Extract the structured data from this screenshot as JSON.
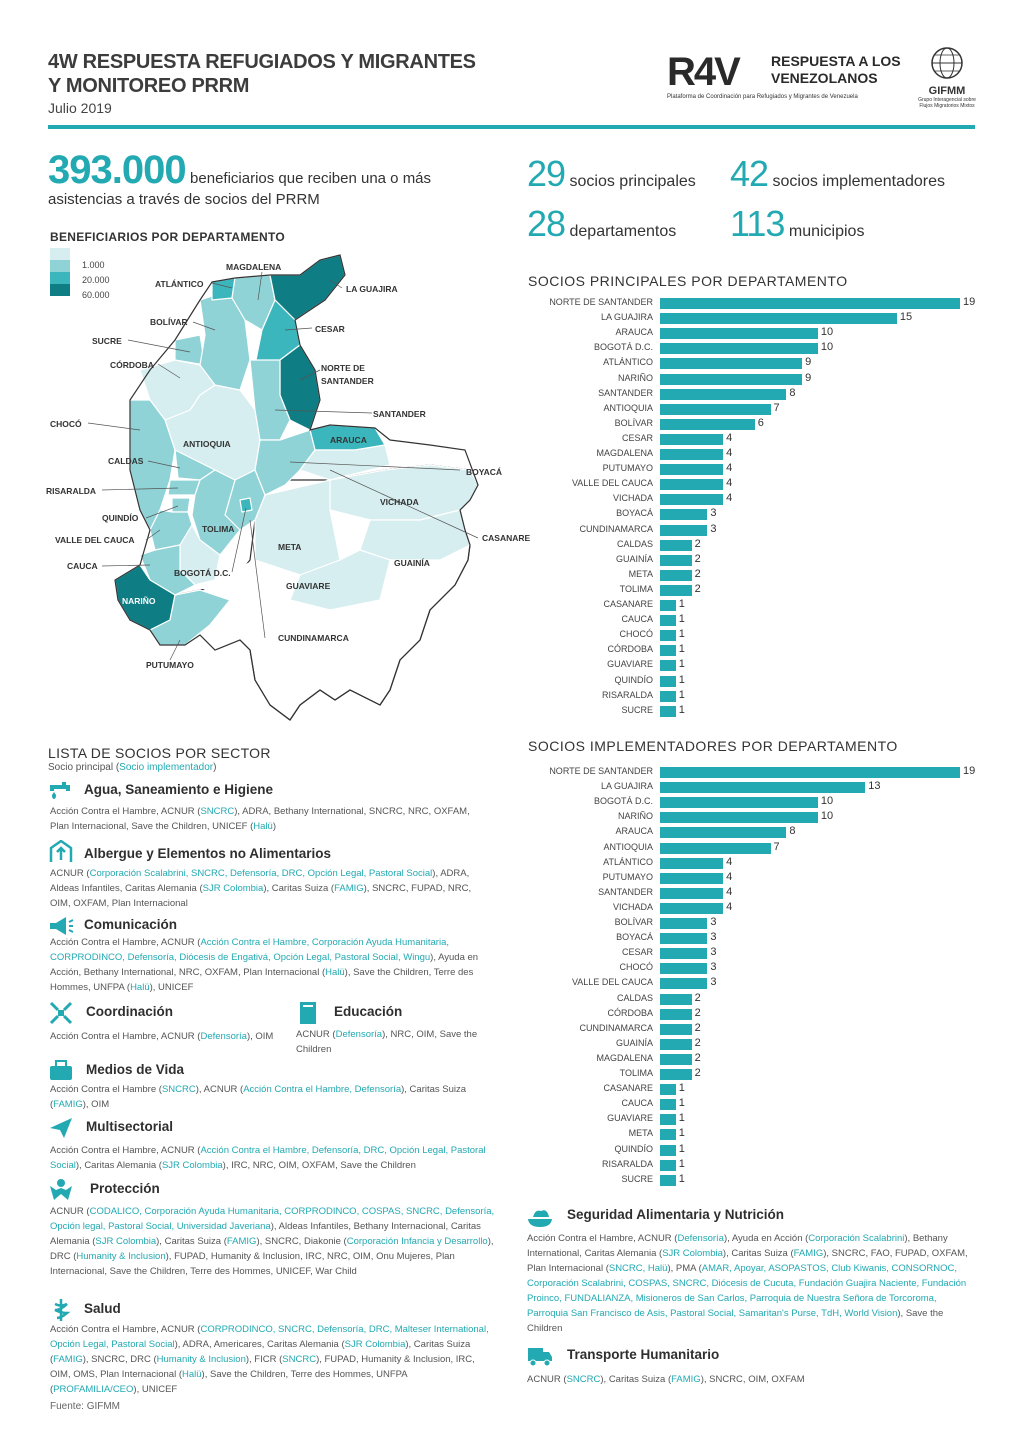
{
  "header": {
    "title_line1": "4W RESPUESTA REFUGIADOS Y MIGRANTES",
    "title_line2": "Y MONITOREO PRRM",
    "date": "Julio 2019",
    "logo_r4v": "R4V",
    "logo_r4v_text1": "RESPUESTA A LOS",
    "logo_r4v_text2": "VENEZOLANOS",
    "logo_r4v_sub": "Plataforma de Coordinación para Refugiados y Migrantes de Venezuela",
    "logo_gifmm": "GIFMM",
    "logo_gifmm_sub": "Grupo Interagencial sobre Flujos Migratorios Mixtos"
  },
  "summary": {
    "beneficiaries_value": "393.000",
    "beneficiaries_text1": "beneficiarios que reciben una o más",
    "beneficiaries_text2": "asistencias a través de socios del PRRM",
    "kpis": [
      {
        "value": "29",
        "label": "socios principales"
      },
      {
        "value": "42",
        "label": "socios implementadores"
      },
      {
        "value": "28",
        "label": "departamentos"
      },
      {
        "value": "113",
        "label": "municipios"
      }
    ]
  },
  "map": {
    "title": "BENEFICIARIOS POR DEPARTAMENTO",
    "legend": [
      "1.000",
      "20.000",
      "60.000"
    ],
    "legend_colors": [
      "#d6eef0",
      "#8fd3d7",
      "#3cb6bd",
      "#0e7d84"
    ],
    "labels": [
      "MAGDALENA",
      "ATLÁNTICO",
      "LA GUAJIRA",
      "BOLÍVAR",
      "CESAR",
      "SUCRE",
      "CÓRDOBA",
      "NORTE DE",
      "SANTANDER",
      "SANTANDER",
      "CHOCÓ",
      "ARAUCA",
      "ANTIOQUIA",
      "CALDAS",
      "BOYACÁ",
      "RISARALDA",
      "VICHADA",
      "QUINDÍO",
      "TOLIMA",
      "VALLE DEL CAUCA",
      "CASANARE",
      "META",
      "GUAINÍA",
      "CAUCA",
      "BOGOTÁ D.C.",
      "GUAVIARE",
      "NARIÑO",
      "CUNDINAMARCA",
      "PUTUMAYO"
    ]
  },
  "chart_data": [
    {
      "type": "bar",
      "title": "SOCIOS PRINCIPALES POR DEPARTAMENTO",
      "orientation": "horizontal",
      "categories": [
        "NORTE DE SANTANDER",
        "LA GUAJIRA",
        "ARAUCA",
        "BOGOTÁ D.C.",
        "ATLÁNTICO",
        "NARIÑO",
        "SANTANDER",
        "ANTIOQUIA",
        "BOLÍVAR",
        "CESAR",
        "MAGDALENA",
        "PUTUMAYO",
        "VALLE DEL CAUCA",
        "VICHADA",
        "BOYACÁ",
        "CUNDINAMARCA",
        "CALDAS",
        "GUAINÍA",
        "META",
        "TOLIMA",
        "CASANARE",
        "CAUCA",
        "CHOCÓ",
        "CÓRDOBA",
        "GUAVIARE",
        "QUINDÍO",
        "RISARALDA",
        "SUCRE"
      ],
      "values": [
        19,
        15,
        10,
        10,
        9,
        9,
        8,
        7,
        6,
        4,
        4,
        4,
        4,
        4,
        3,
        3,
        2,
        2,
        2,
        2,
        1,
        1,
        1,
        1,
        1,
        1,
        1,
        1
      ],
      "color": "#22a9b2"
    },
    {
      "type": "bar",
      "title": "SOCIOS IMPLEMENTADORES POR DEPARTAMENTO",
      "orientation": "horizontal",
      "categories": [
        "NORTE DE SANTANDER",
        "LA GUAJIRA",
        "BOGOTÁ D.C.",
        "NARIÑO",
        "ARAUCA",
        "ANTIOQUIA",
        "ATLÁNTICO",
        "PUTUMAYO",
        "SANTANDER",
        "VICHADA",
        "BOLÍVAR",
        "BOYACÁ",
        "CESAR",
        "CHOCÓ",
        "VALLE DEL CAUCA",
        "CALDAS",
        "CÓRDOBA",
        "CUNDINAMARCA",
        "GUAINÍA",
        "MAGDALENA",
        "TOLIMA",
        "CASANARE",
        "CAUCA",
        "GUAVIARE",
        "META",
        "QUINDÍO",
        "RISARALDA",
        "SUCRE"
      ],
      "values": [
        19,
        13,
        10,
        10,
        8,
        7,
        4,
        4,
        4,
        4,
        3,
        3,
        3,
        3,
        3,
        2,
        2,
        2,
        2,
        2,
        2,
        1,
        1,
        1,
        1,
        1,
        1,
        1
      ],
      "color": "#22a9b2"
    }
  ],
  "sectors": {
    "title": "LISTA DE SOCIOS POR SECTOR",
    "subtitle_a": "Socio principal (",
    "subtitle_b": "Socio implementador",
    "subtitle_c": ")",
    "items": [
      {
        "name": "Agua, Saneamiento e Higiene",
        "text": "Acción Contra el Hambre, ACNUR (SNCRC), ADRA, Bethany International, SNCRC, NRC, OXFAM, Plan Internacional, Save the Children, UNICEF (Halü)"
      },
      {
        "name": "Albergue y Elementos no Alimentarios",
        "text": "ACNUR (Corporación Scalabrini, SNCRC, Defensoría, DRC, Opción Legal, Pastoral Social), ADRA, Aldeas Infantiles, Caritas Alemania (SJR Colombia), Caritas Suiza (FAMIG), SNCRC, FUPAD, NRC, OIM, OXFAM, Plan Internacional"
      },
      {
        "name": "Comunicación",
        "text": "Acción Contra el Hambre, ACNUR (Acción Contra el Hambre, Corporación Ayuda Humanitaria, CORPRODINCO, Defensoría, Diócesis de Engativá, Opción Legal, Pastoral Social, Wingu), Ayuda en Acción, Bethany International, NRC, OXFAM, Plan Internacional (Halü), Save the Children, Terre des Hommes, UNFPA (Halü), UNICEF"
      },
      {
        "name": "Coordinación",
        "text": "Acción Contra el Hambre, ACNUR (Defensoría), OIM"
      },
      {
        "name": "Educación",
        "text": "ACNUR (Defensoría), NRC, OIM, Save the Children"
      },
      {
        "name": "Medios de Vida",
        "text": "Acción Contra el Hambre (SNCRC), ACNUR (Acción Contra el Hambre, Defensoría), Caritas Suiza (FAMIG), OIM"
      },
      {
        "name": "Multisectorial",
        "text": "Acción Contra el Hambre, ACNUR (Acción Contra el Hambre, Defensoría, DRC, Opción Legal, Pastoral Social), Caritas Alemania (SJR Colombia), IRC, NRC, OIM, OXFAM, Save the Children"
      },
      {
        "name": "Protección",
        "text": "ACNUR (CODALICO, Corporación Ayuda Humanitaria, CORPRODINCO, COSPAS, SNCRC, Defensoría, Opción legal, Pastoral Social, Universidad Javeriana), Aldeas Infantiles, Bethany Internacional, Caritas Alemania (SJR Colombia), Caritas Suiza (FAMIG), SNCRC, Diakonie (Corporación Infancia y Desarrollo), DRC (Humanity & Inclusion), FUPAD, Humanity & Inclusion, IRC, NRC, OIM, Onu Mujeres, Plan Internacional, Save the Children, Terre des Hommes, UNICEF, War Child"
      },
      {
        "name": "Salud",
        "text": "Acción Contra el Hambre, ACNUR (CORPRODINCO, SNCRC, Defensoría, DRC, Malteser International, Opción Legal, Pastoral Social), ADRA, Americares, Caritas Alemania (SJR Colombia), Caritas Suiza (FAMIG), SNCRC, DRC (Humanity & Inclusion), FICR (SNCRC), FUPAD, Humanity & Inclusion, IRC, OIM, OMS, Plan Internacional (Halü), Save the Children, Terre des Hommes, UNFPA (PROFAMILIA/CEO), UNICEF"
      },
      {
        "name": "Seguridad Alimentaria y Nutrición",
        "text": "Acción Contra el Hambre, ACNUR (Defensoría), Ayuda en Acción (Corporación Scalabrini), Bethany International, Caritas Alemania (SJR Colombia), Caritas Suiza (FAMIG), SNCRC, FAO, FUPAD, OXFAM, Plan Internacional (SNCRC, Halü), PMA (AMAR, Apoyar, ASOPASTOS, Club Kiwanis, CONSORNOC, Corporación Scalabrini, COSPAS, SNCRC, Diócesis de Cucuta, Fundación Guajira Naciente, Fundación Proinco, FUNDALIANZA, Misioneros de San Carlos, Parroquia de Nuestra Señora de Torcoroma, Parroquia San Francisco de Asis, Pastoral Social, Samaritan's Purse, TdH, World Vision), Save the Children"
      },
      {
        "name": "Transporte Humanitario",
        "text": "ACNUR (SNCRC), Caritas Suiza (FAMIG), SNCRC, OIM, OXFAM"
      }
    ]
  },
  "source": "Fuente: GIFMM"
}
